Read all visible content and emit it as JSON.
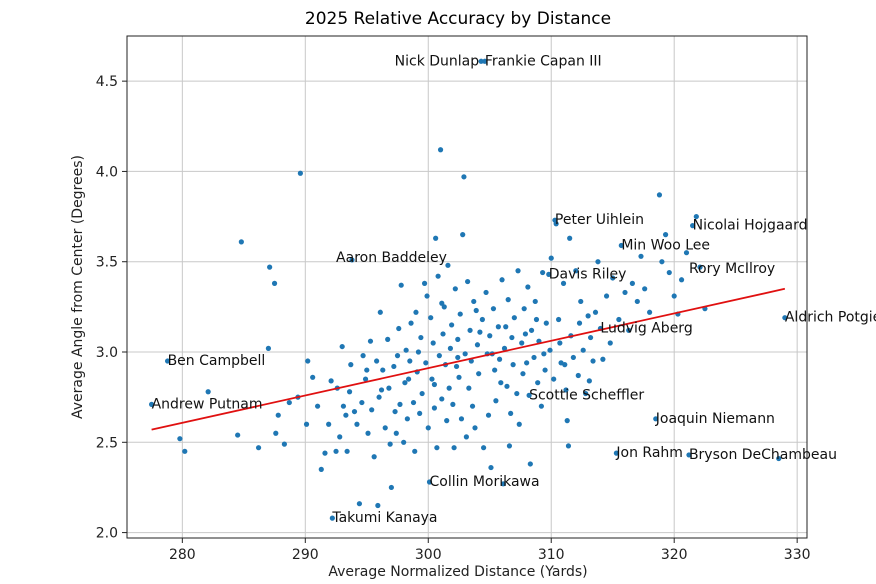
{
  "chart_data": {
    "type": "scatter",
    "title": "2025 Relative Accuracy by Distance",
    "xlabel": "Average Normalized Distance (Yards)",
    "ylabel": "Average Angle from Center (Degrees)",
    "xlim": [
      275.5,
      330.8
    ],
    "ylim": [
      1.97,
      4.75
    ],
    "xticks": [
      280,
      290,
      300,
      310,
      320,
      330
    ],
    "yticks": [
      2.0,
      2.5,
      3.0,
      3.5,
      4.0,
      4.5
    ],
    "xtick_labels": [
      "280",
      "290",
      "300",
      "310",
      "320",
      "330"
    ],
    "ytick_labels": [
      "2.0",
      "2.5",
      "3.0",
      "3.5",
      "4.0",
      "4.5"
    ],
    "grid": true,
    "point_color": "#1f77b4",
    "trend_color": "#e01010",
    "trendline": {
      "x": [
        277.5,
        329.0
      ],
      "y": [
        2.57,
        3.35
      ]
    },
    "annotations": [
      {
        "text": "Nick Dunlap",
        "x": 304.3,
        "y": 4.61
      },
      {
        "text": "Frankie Capan III",
        "x": 304.6,
        "y": 4.61
      },
      {
        "text": "Peter Uihlein",
        "x": 310.3,
        "y": 3.73
      },
      {
        "text": "Nicolai Hojgaard",
        "x": 321.5,
        "y": 3.7
      },
      {
        "text": "Aaron Baddeley",
        "x": 292.5,
        "y": 3.52
      },
      {
        "text": "Min Woo Lee",
        "x": 315.7,
        "y": 3.59
      },
      {
        "text": "Davis Riley",
        "x": 309.8,
        "y": 3.43
      },
      {
        "text": "Rory McIlroy",
        "x": 321.2,
        "y": 3.46
      },
      {
        "text": "Aldrich Potgieter",
        "x": 329.0,
        "y": 3.19
      },
      {
        "text": "Ludvig Aberg",
        "x": 314.0,
        "y": 3.13
      },
      {
        "text": "Ben Campbell",
        "x": 278.8,
        "y": 2.95
      },
      {
        "text": "Andrew Putnam",
        "x": 277.5,
        "y": 2.71
      },
      {
        "text": "Scottie Scheffler",
        "x": 308.2,
        "y": 2.76
      },
      {
        "text": "Joaquin Niemann",
        "x": 318.5,
        "y": 2.63
      },
      {
        "text": "Jon Rahm",
        "x": 315.3,
        "y": 2.44
      },
      {
        "text": "Bryson DeChambeau",
        "x": 321.2,
        "y": 2.43
      },
      {
        "text": "Collin Morikawa",
        "x": 300.1,
        "y": 2.28
      },
      {
        "text": "Takumi Kanaya",
        "x": 292.2,
        "y": 2.08
      }
    ],
    "points": [
      [
        277.5,
        2.71
      ],
      [
        278.8,
        2.95
      ],
      [
        279.8,
        2.52
      ],
      [
        280.2,
        2.45
      ],
      [
        282.1,
        2.78
      ],
      [
        284.5,
        2.54
      ],
      [
        284.8,
        3.61
      ],
      [
        286.2,
        2.47
      ],
      [
        287.0,
        3.02
      ],
      [
        287.1,
        3.47
      ],
      [
        287.6,
        2.55
      ],
      [
        287.8,
        2.65
      ],
      [
        287.5,
        3.38
      ],
      [
        288.3,
        2.49
      ],
      [
        288.7,
        2.72
      ],
      [
        289.4,
        2.75
      ],
      [
        289.6,
        3.99
      ],
      [
        290.1,
        2.6
      ],
      [
        290.2,
        2.95
      ],
      [
        290.6,
        2.86
      ],
      [
        291.3,
        2.35
      ],
      [
        291.6,
        2.44
      ],
      [
        291.9,
        2.6
      ],
      [
        292.2,
        2.08
      ],
      [
        292.5,
        2.45
      ],
      [
        292.6,
        2.8
      ],
      [
        292.8,
        2.53
      ],
      [
        293.0,
        3.03
      ],
      [
        293.1,
        2.7
      ],
      [
        293.3,
        2.65
      ],
      [
        293.4,
        2.45
      ],
      [
        293.6,
        2.78
      ],
      [
        293.7,
        2.93
      ],
      [
        293.8,
        3.51
      ],
      [
        294.2,
        2.6
      ],
      [
        294.4,
        2.16
      ],
      [
        294.6,
        2.72
      ],
      [
        294.7,
        2.98
      ],
      [
        294.9,
        2.85
      ],
      [
        295.1,
        2.55
      ],
      [
        295.3,
        3.06
      ],
      [
        295.4,
        2.68
      ],
      [
        295.6,
        2.42
      ],
      [
        295.8,
        2.95
      ],
      [
        295.9,
        2.15
      ],
      [
        296.0,
        2.75
      ],
      [
        296.1,
        3.22
      ],
      [
        296.3,
        2.9
      ],
      [
        296.5,
        2.58
      ],
      [
        296.7,
        3.07
      ],
      [
        296.8,
        2.8
      ],
      [
        296.9,
        2.49
      ],
      [
        297.0,
        2.25
      ],
      [
        297.2,
        2.92
      ],
      [
        297.3,
        2.67
      ],
      [
        297.5,
        2.98
      ],
      [
        297.6,
        3.13
      ],
      [
        297.7,
        2.71
      ],
      [
        297.8,
        3.37
      ],
      [
        298.0,
        2.5
      ],
      [
        298.1,
        2.83
      ],
      [
        298.2,
        3.01
      ],
      [
        298.3,
        2.63
      ],
      [
        298.5,
        2.95
      ],
      [
        298.6,
        3.16
      ],
      [
        298.8,
        2.72
      ],
      [
        298.9,
        2.45
      ],
      [
        299.0,
        3.22
      ],
      [
        299.1,
        2.89
      ],
      [
        299.3,
        2.66
      ],
      [
        299.4,
        3.08
      ],
      [
        299.5,
        2.77
      ],
      [
        299.7,
        3.38
      ],
      [
        299.8,
        2.94
      ],
      [
        299.9,
        3.31
      ],
      [
        300.0,
        2.58
      ],
      [
        300.1,
        2.28
      ],
      [
        300.2,
        3.19
      ],
      [
        300.3,
        2.85
      ],
      [
        300.4,
        3.05
      ],
      [
        300.5,
        2.69
      ],
      [
        300.6,
        3.63
      ],
      [
        300.7,
        2.47
      ],
      [
        300.8,
        3.42
      ],
      [
        300.9,
        2.98
      ],
      [
        301.0,
        4.12
      ],
      [
        301.1,
        2.74
      ],
      [
        301.2,
        3.1
      ],
      [
        301.3,
        3.25
      ],
      [
        301.4,
        2.93
      ],
      [
        301.5,
        2.62
      ],
      [
        301.6,
        3.48
      ],
      [
        301.7,
        2.8
      ],
      [
        301.8,
        3.02
      ],
      [
        301.9,
        3.15
      ],
      [
        302.0,
        2.71
      ],
      [
        302.1,
        2.47
      ],
      [
        302.2,
        3.35
      ],
      [
        302.3,
        2.92
      ],
      [
        302.4,
        3.07
      ],
      [
        302.5,
        2.86
      ],
      [
        302.6,
        3.21
      ],
      [
        302.7,
        2.63
      ],
      [
        302.8,
        3.65
      ],
      [
        302.9,
        3.97
      ],
      [
        303.0,
        2.99
      ],
      [
        303.1,
        2.53
      ],
      [
        303.2,
        3.39
      ],
      [
        303.3,
        2.8
      ],
      [
        303.4,
        3.12
      ],
      [
        303.5,
        2.95
      ],
      [
        303.6,
        2.7
      ],
      [
        303.7,
        3.28
      ],
      [
        303.8,
        2.58
      ],
      [
        304.0,
        3.04
      ],
      [
        304.1,
        2.88
      ],
      [
        304.3,
        4.61
      ],
      [
        304.6,
        4.61
      ],
      [
        304.4,
        3.18
      ],
      [
        304.5,
        2.47
      ],
      [
        304.7,
        3.33
      ],
      [
        304.8,
        2.99
      ],
      [
        304.9,
        2.65
      ],
      [
        305.0,
        3.09
      ],
      [
        305.1,
        2.36
      ],
      [
        305.3,
        3.24
      ],
      [
        305.4,
        2.9
      ],
      [
        305.5,
        2.73
      ],
      [
        305.7,
        3.14
      ],
      [
        305.8,
        2.96
      ],
      [
        306.0,
        3.4
      ],
      [
        306.1,
        2.27
      ],
      [
        306.2,
        3.02
      ],
      [
        306.4,
        2.81
      ],
      [
        306.5,
        3.29
      ],
      [
        306.6,
        2.48
      ],
      [
        306.8,
        3.08
      ],
      [
        306.9,
        2.93
      ],
      [
        307.0,
        3.19
      ],
      [
        307.2,
        2.77
      ],
      [
        307.3,
        3.45
      ],
      [
        307.4,
        2.6
      ],
      [
        307.6,
        3.05
      ],
      [
        307.7,
        2.88
      ],
      [
        307.8,
        3.24
      ],
      [
        308.0,
        2.94
      ],
      [
        308.1,
        3.36
      ],
      [
        308.2,
        2.76
      ],
      [
        308.3,
        2.38
      ],
      [
        308.4,
        3.12
      ],
      [
        308.6,
        2.97
      ],
      [
        308.7,
        3.28
      ],
      [
        308.9,
        2.83
      ],
      [
        309.0,
        3.06
      ],
      [
        309.2,
        2.7
      ],
      [
        309.3,
        3.44
      ],
      [
        309.5,
        2.9
      ],
      [
        309.6,
        3.16
      ],
      [
        309.8,
        3.43
      ],
      [
        309.9,
        3.01
      ],
      [
        310.0,
        3.52
      ],
      [
        310.2,
        2.85
      ],
      [
        310.3,
        3.73
      ],
      [
        310.4,
        3.71
      ],
      [
        310.6,
        3.18
      ],
      [
        310.8,
        2.94
      ],
      [
        311.0,
        3.38
      ],
      [
        311.2,
        2.79
      ],
      [
        311.3,
        2.62
      ],
      [
        311.4,
        2.48
      ],
      [
        311.5,
        3.63
      ],
      [
        311.6,
        3.09
      ],
      [
        311.8,
        2.97
      ],
      [
        312.0,
        3.45
      ],
      [
        312.2,
        2.87
      ],
      [
        312.4,
        3.28
      ],
      [
        312.6,
        3.01
      ],
      [
        312.8,
        2.77
      ],
      [
        313.0,
        3.2
      ],
      [
        313.2,
        3.08
      ],
      [
        313.4,
        2.95
      ],
      [
        313.6,
        3.22
      ],
      [
        313.8,
        3.5
      ],
      [
        314.0,
        3.13
      ],
      [
        314.2,
        2.96
      ],
      [
        314.5,
        3.31
      ],
      [
        314.8,
        3.05
      ],
      [
        315.0,
        3.41
      ],
      [
        315.3,
        2.44
      ],
      [
        315.5,
        3.18
      ],
      [
        315.7,
        3.59
      ],
      [
        316.0,
        3.33
      ],
      [
        316.3,
        3.12
      ],
      [
        316.6,
        3.38
      ],
      [
        317.0,
        3.28
      ],
      [
        317.3,
        3.53
      ],
      [
        317.6,
        3.35
      ],
      [
        318.0,
        3.22
      ],
      [
        318.5,
        2.63
      ],
      [
        318.8,
        3.87
      ],
      [
        319.0,
        3.5
      ],
      [
        319.3,
        3.65
      ],
      [
        319.6,
        3.44
      ],
      [
        320.0,
        3.31
      ],
      [
        320.3,
        3.21
      ],
      [
        320.6,
        3.4
      ],
      [
        321.0,
        3.55
      ],
      [
        321.2,
        2.43
      ],
      [
        321.5,
        3.7
      ],
      [
        321.8,
        3.75
      ],
      [
        322.1,
        3.47
      ],
      [
        322.5,
        3.24
      ],
      [
        329.0,
        3.19
      ],
      [
        328.5,
        2.41
      ],
      [
        298.4,
        2.85
      ],
      [
        296.2,
        2.79
      ],
      [
        295.0,
        2.9
      ],
      [
        299.2,
        3.0
      ],
      [
        301.1,
        3.27
      ],
      [
        303.9,
        3.23
      ],
      [
        305.2,
        2.99
      ],
      [
        306.7,
        2.66
      ],
      [
        307.9,
        3.1
      ],
      [
        309.4,
        2.99
      ],
      [
        311.1,
        2.93
      ],
      [
        312.3,
        3.16
      ],
      [
        313.1,
        2.84
      ],
      [
        300.5,
        2.82
      ],
      [
        302.4,
        2.97
      ],
      [
        304.2,
        3.11
      ],
      [
        297.4,
        2.55
      ],
      [
        294.0,
        2.67
      ],
      [
        292.1,
        2.84
      ],
      [
        291.0,
        2.7
      ],
      [
        308.8,
        3.18
      ],
      [
        310.7,
        3.05
      ],
      [
        306.3,
        3.14
      ],
      [
        305.9,
        2.83
      ]
    ]
  }
}
